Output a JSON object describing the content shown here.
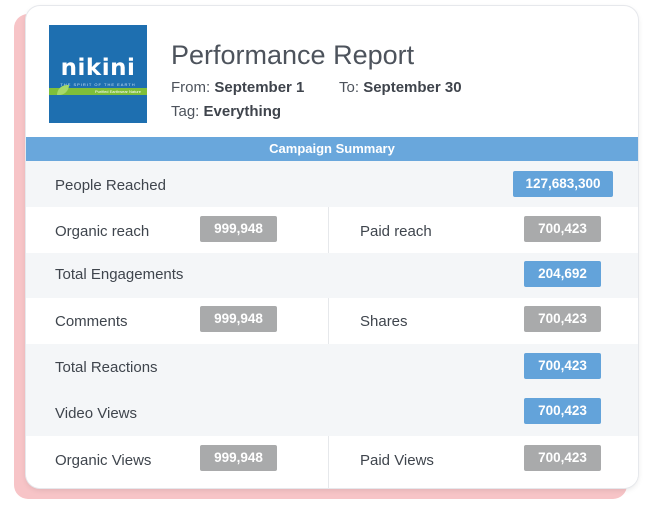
{
  "logo": {
    "brand": "nikini",
    "tagline": "THE SPIRIT OF THE EARTH",
    "band_text": "Purified Earthwear Nature"
  },
  "header": {
    "title": "Performance Report",
    "from_label": "From:",
    "from_value": "September 1",
    "to_label": "To:",
    "to_value": "September 30",
    "tag_label": "Tag:",
    "tag_value": "Everything"
  },
  "summary": {
    "banner": "Campaign Summary",
    "people_reached": {
      "label": "People Reached",
      "value": "127,683,300"
    },
    "organic_reach": {
      "label": "Organic reach",
      "value": "999,948"
    },
    "paid_reach": {
      "label": "Paid reach",
      "value": "700,423"
    },
    "total_engagements": {
      "label": "Total Engagements",
      "value": "204,692"
    },
    "comments": {
      "label": "Comments",
      "value": "999,948"
    },
    "shares": {
      "label": "Shares",
      "value": "700,423"
    },
    "total_reactions": {
      "label": "Total Reactions",
      "value": "700,423"
    },
    "video_views": {
      "label": "Video Views",
      "value": "700,423"
    },
    "organic_views": {
      "label": "Organic Views",
      "value": "999,948"
    },
    "paid_views": {
      "label": "Paid Views",
      "value": "700,423"
    }
  },
  "colors": {
    "accent_blue": "#69a7dc",
    "badge_blue": "#63a3da",
    "badge_grey": "#a9aaab",
    "back_card_pink": "#f7c4c7",
    "logo_blue": "#1e6fb0",
    "logo_green": "#7fbf3a"
  }
}
